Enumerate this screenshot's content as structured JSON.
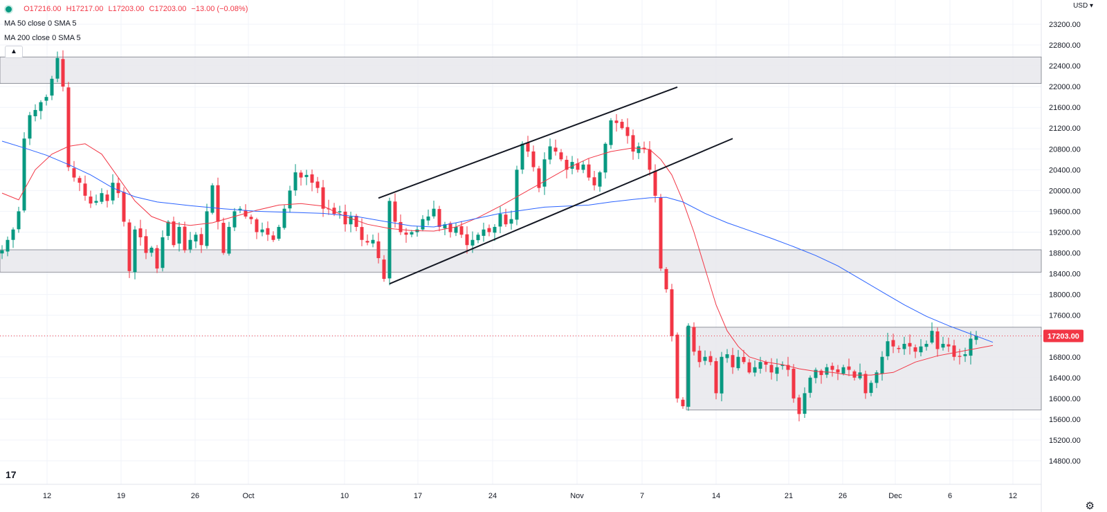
{
  "legend": {
    "ohlc_prefix": "",
    "open": "O17216.00",
    "high": "H17217.00",
    "low": "L17203.00",
    "close": "C17203.00",
    "change": "−13.00 (−0.08%)",
    "ma50": "MA 50 close 0 SMA 5",
    "ma200": "MA 200 close 0 SMA 5"
  },
  "currency": "USD ▾",
  "logo": "17",
  "settings_icon": "gear-icon",
  "colors": {
    "up": "#089981",
    "down": "#f23645",
    "ma50": "#f23645",
    "ma200": "#2962ff",
    "zone": "#e8e8ec",
    "last_price_bg": "#f23645"
  },
  "chart_data": {
    "type": "candlestick",
    "ylim": [
      14800,
      23400
    ],
    "y_ticks": [
      "23200.00",
      "22800.00",
      "22400.00",
      "22000.00",
      "21600.00",
      "21200.00",
      "20800.00",
      "20400.00",
      "20000.00",
      "19600.00",
      "19200.00",
      "18800.00",
      "18400.00",
      "18000.00",
      "17600.00",
      "17200.00",
      "16800.00",
      "16400.00",
      "16000.00",
      "15600.00",
      "15200.00",
      "14800.00"
    ],
    "x_labels": [
      "12",
      "19",
      "26",
      "Oct",
      "10",
      "17",
      "24",
      "Nov",
      "7",
      "14",
      "21",
      "26",
      "Dec",
      "6",
      "12"
    ],
    "last_price": "17203.00",
    "series": [
      {
        "name": "MA 50",
        "points": [
          [
            0,
            19950
          ],
          [
            3,
            19820
          ],
          [
            6,
            20400
          ],
          [
            9,
            20700
          ],
          [
            12,
            20850
          ],
          [
            15,
            20900
          ],
          [
            18,
            20700
          ],
          [
            21,
            20250
          ],
          [
            24,
            19800
          ],
          [
            27,
            19500
          ],
          [
            30,
            19380
          ],
          [
            34,
            19330
          ],
          [
            38,
            19380
          ],
          [
            42,
            19500
          ],
          [
            46,
            19620
          ],
          [
            50,
            19720
          ],
          [
            54,
            19750
          ],
          [
            58,
            19700
          ],
          [
            62,
            19500
          ],
          [
            66,
            19350
          ],
          [
            70,
            19270
          ],
          [
            74,
            19230
          ],
          [
            78,
            19220
          ],
          [
            82,
            19300
          ],
          [
            86,
            19480
          ],
          [
            90,
            19700
          ],
          [
            94,
            19940
          ],
          [
            98,
            20180
          ],
          [
            102,
            20420
          ],
          [
            106,
            20620
          ],
          [
            110,
            20750
          ],
          [
            114,
            20820
          ],
          [
            117,
            20790
          ],
          [
            119,
            20600
          ],
          [
            121,
            20300
          ],
          [
            123,
            19800
          ],
          [
            125,
            19200
          ],
          [
            127,
            18500
          ],
          [
            129,
            17800
          ],
          [
            131,
            17300
          ],
          [
            133,
            17000
          ],
          [
            135,
            16800
          ],
          [
            138,
            16700
          ],
          [
            141,
            16650
          ],
          [
            144,
            16570
          ],
          [
            147,
            16520
          ],
          [
            150,
            16500
          ],
          [
            153,
            16450
          ],
          [
            157,
            16450
          ],
          [
            161,
            16500
          ],
          [
            165,
            16700
          ],
          [
            169,
            16820
          ],
          [
            173,
            16900
          ],
          [
            177,
            16980
          ],
          [
            179,
            17020
          ]
        ]
      },
      {
        "name": "MA 200",
        "points": [
          [
            0,
            20950
          ],
          [
            4,
            20820
          ],
          [
            8,
            20680
          ],
          [
            12,
            20500
          ],
          [
            16,
            20300
          ],
          [
            20,
            20050
          ],
          [
            24,
            19880
          ],
          [
            28,
            19780
          ],
          [
            34,
            19710
          ],
          [
            40,
            19650
          ],
          [
            46,
            19600
          ],
          [
            52,
            19580
          ],
          [
            58,
            19560
          ],
          [
            64,
            19500
          ],
          [
            70,
            19390
          ],
          [
            74,
            19320
          ],
          [
            78,
            19300
          ],
          [
            82,
            19380
          ],
          [
            86,
            19470
          ],
          [
            90,
            19560
          ],
          [
            94,
            19620
          ],
          [
            98,
            19680
          ],
          [
            102,
            19700
          ],
          [
            106,
            19720
          ],
          [
            110,
            19780
          ],
          [
            114,
            19830
          ],
          [
            117,
            19860
          ],
          [
            120,
            19870
          ],
          [
            123,
            19780
          ],
          [
            127,
            19560
          ],
          [
            131,
            19380
          ],
          [
            135,
            19230
          ],
          [
            139,
            19080
          ],
          [
            143,
            18920
          ],
          [
            147,
            18750
          ],
          [
            151,
            18550
          ],
          [
            155,
            18300
          ],
          [
            159,
            18050
          ],
          [
            163,
            17800
          ],
          [
            167,
            17580
          ],
          [
            171,
            17400
          ],
          [
            175,
            17240
          ],
          [
            179,
            17080
          ]
        ]
      }
    ],
    "trend_lines": [
      {
        "from": [
          68,
          19855
        ],
        "to": [
          122,
          21990
        ]
      },
      {
        "from": [
          70,
          18205
        ],
        "to": [
          132,
          21000
        ]
      }
    ],
    "zones": [
      {
        "y": [
          22060,
          22570
        ],
        "x": [
          0,
          190
        ]
      },
      {
        "y": [
          18430,
          18860
        ],
        "x": [
          0,
          190
        ]
      },
      {
        "y": [
          15780,
          17370
        ],
        "x": [
          124,
          180
        ]
      }
    ],
    "n_candles": 180,
    "anchors": [
      [
        0,
        18850
      ],
      [
        1,
        19050
      ],
      [
        2,
        19250
      ],
      [
        3,
        19600
      ],
      [
        4,
        21000
      ],
      [
        5,
        21450
      ],
      [
        6,
        21550
      ],
      [
        7,
        21700
      ],
      [
        8,
        21800
      ],
      [
        9,
        22150
      ],
      [
        10,
        22550
      ],
      [
        11,
        22000
      ],
      [
        12,
        20450
      ],
      [
        13,
        20250
      ],
      [
        14,
        20150
      ],
      [
        15,
        19900
      ],
      [
        16,
        19750
      ],
      [
        17,
        19800
      ],
      [
        18,
        19950
      ],
      [
        19,
        19800
      ],
      [
        20,
        20150
      ],
      [
        21,
        19950
      ],
      [
        22,
        19400
      ],
      [
        23,
        18450
      ],
      [
        24,
        19250
      ],
      [
        25,
        19100
      ],
      [
        26,
        18800
      ],
      [
        27,
        18900
      ],
      [
        28,
        18500
      ],
      [
        29,
        19100
      ],
      [
        30,
        19400
      ],
      [
        31,
        18950
      ],
      [
        32,
        19300
      ],
      [
        33,
        18850
      ],
      [
        34,
        19050
      ],
      [
        35,
        19150
      ],
      [
        36,
        18950
      ],
      [
        37,
        19600
      ],
      [
        38,
        20100
      ],
      [
        39,
        19400
      ],
      [
        40,
        18800
      ],
      [
        41,
        19300
      ],
      [
        42,
        19600
      ],
      [
        43,
        19650
      ],
      [
        44,
        19500
      ],
      [
        45,
        19450
      ],
      [
        46,
        19200
      ],
      [
        47,
        19250
      ],
      [
        48,
        19150
      ],
      [
        49,
        19050
      ],
      [
        50,
        19300
      ],
      [
        51,
        19650
      ],
      [
        52,
        20000
      ],
      [
        53,
        20350
      ],
      [
        54,
        20250
      ],
      [
        55,
        20300
      ],
      [
        56,
        20150
      ],
      [
        57,
        20050
      ],
      [
        58,
        19650
      ],
      [
        59,
        19650
      ],
      [
        60,
        19550
      ],
      [
        61,
        19600
      ],
      [
        62,
        19350
      ],
      [
        63,
        19500
      ],
      [
        64,
        19300
      ],
      [
        65,
        19050
      ],
      [
        66,
        19000
      ],
      [
        67,
        19050
      ],
      [
        68,
        18700
      ],
      [
        69,
        18300
      ],
      [
        70,
        19800
      ],
      [
        71,
        19400
      ],
      [
        72,
        19200
      ],
      [
        73,
        19150
      ],
      [
        74,
        19200
      ],
      [
        75,
        19250
      ],
      [
        76,
        19450
      ],
      [
        77,
        19500
      ],
      [
        78,
        19650
      ],
      [
        79,
        19300
      ],
      [
        80,
        19350
      ],
      [
        81,
        19200
      ],
      [
        82,
        19300
      ],
      [
        83,
        19150
      ],
      [
        84,
        18950
      ],
      [
        85,
        19050
      ],
      [
        86,
        19150
      ],
      [
        87,
        19250
      ],
      [
        88,
        19200
      ],
      [
        89,
        19300
      ],
      [
        90,
        19550
      ],
      [
        91,
        19350
      ],
      [
        92,
        19450
      ],
      [
        93,
        20400
      ],
      [
        94,
        20900
      ],
      [
        95,
        20750
      ],
      [
        96,
        20450
      ],
      [
        97,
        20050
      ],
      [
        98,
        20600
      ],
      [
        99,
        20850
      ],
      [
        100,
        20750
      ],
      [
        101,
        20600
      ],
      [
        102,
        20400
      ],
      [
        103,
        20550
      ],
      [
        104,
        20400
      ],
      [
        105,
        20500
      ],
      [
        106,
        20250
      ],
      [
        107,
        20100
      ],
      [
        108,
        20350
      ],
      [
        109,
        20900
      ],
      [
        110,
        21350
      ],
      [
        111,
        21300
      ],
      [
        112,
        21200
      ],
      [
        113,
        21050
      ],
      [
        114,
        20750
      ],
      [
        115,
        20850
      ],
      [
        116,
        20800
      ],
      [
        117,
        20400
      ],
      [
        118,
        19900
      ],
      [
        119,
        18500
      ],
      [
        120,
        18100
      ],
      [
        121,
        17200
      ],
      [
        122,
        16000
      ],
      [
        123,
        15850
      ],
      [
        124,
        17400
      ],
      [
        125,
        16900
      ],
      [
        126,
        16700
      ],
      [
        127,
        16800
      ],
      [
        128,
        16700
      ],
      [
        129,
        16100
      ],
      [
        130,
        16800
      ],
      [
        131,
        16850
      ],
      [
        132,
        16600
      ],
      [
        133,
        16800
      ],
      [
        134,
        16700
      ],
      [
        135,
        16500
      ],
      [
        136,
        16600
      ],
      [
        137,
        16700
      ],
      [
        138,
        16650
      ],
      [
        139,
        16500
      ],
      [
        140,
        16600
      ],
      [
        141,
        16650
      ],
      [
        142,
        16550
      ],
      [
        143,
        16000
      ],
      [
        144,
        15700
      ],
      [
        145,
        16100
      ],
      [
        146,
        16400
      ],
      [
        147,
        16550
      ],
      [
        148,
        16450
      ],
      [
        149,
        16600
      ],
      [
        150,
        16550
      ],
      [
        151,
        16500
      ],
      [
        152,
        16600
      ],
      [
        153,
        16550
      ],
      [
        154,
        16400
      ],
      [
        155,
        16500
      ],
      [
        156,
        16100
      ],
      [
        157,
        16300
      ],
      [
        158,
        16500
      ],
      [
        159,
        16800
      ],
      [
        160,
        17100
      ],
      [
        161,
        17000
      ],
      [
        162,
        16950
      ],
      [
        163,
        17050
      ],
      [
        164,
        17000
      ],
      [
        165,
        16900
      ],
      [
        166,
        17000
      ],
      [
        167,
        17050
      ],
      [
        168,
        17300
      ],
      [
        169,
        16950
      ],
      [
        170,
        17050
      ],
      [
        171,
        17000
      ],
      [
        172,
        16800
      ],
      [
        173,
        16800
      ],
      [
        174,
        16850
      ],
      [
        175,
        17150
      ],
      [
        176,
        17203
      ]
    ]
  }
}
